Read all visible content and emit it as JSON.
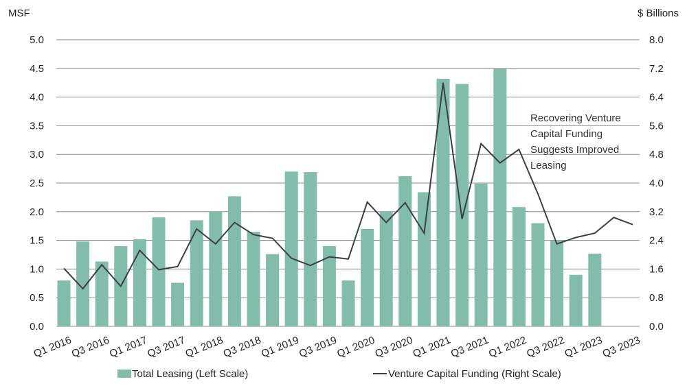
{
  "chart_data": {
    "type": "bar",
    "left_unit_label": "MSF",
    "right_unit_label": "$ Billions",
    "categories": [
      "Q1 2016",
      "Q2 2016",
      "Q3 2016",
      "Q4 2016",
      "Q1 2017",
      "Q2 2017",
      "Q3 2017",
      "Q4 2017",
      "Q1 2018",
      "Q2 2018",
      "Q3 2018",
      "Q4 2018",
      "Q1 2019",
      "Q2 2019",
      "Q3 2019",
      "Q4 2019",
      "Q1 2020",
      "Q2 2020",
      "Q3 2020",
      "Q4 2020",
      "Q1 2021",
      "Q2 2021",
      "Q3 2021",
      "Q4 2021",
      "Q1 2022",
      "Q2 2022",
      "Q3 2022",
      "Q4 2022",
      "Q1 2023",
      "Q2 2023",
      "Q3 2023"
    ],
    "x_tick_labels": [
      "Q1 2016",
      "Q3 2016",
      "Q1 2017",
      "Q3 2017",
      "Q1 2018",
      "Q3 2018",
      "Q1 2019",
      "Q3 2019",
      "Q1 2020",
      "Q3 2020",
      "Q1 2021",
      "Q3 2021",
      "Q1 2022",
      "Q3 2022",
      "Q1 2023",
      "Q3 2023"
    ],
    "left_axis": {
      "ylim": [
        0,
        5.0
      ],
      "ticks": [
        "0.0",
        "0.5",
        "1.0",
        "1.5",
        "2.0",
        "2.5",
        "3.0",
        "3.5",
        "4.0",
        "4.5",
        "5.0"
      ]
    },
    "right_axis": {
      "ylim": [
        0,
        8.0
      ],
      "ticks": [
        "0.0",
        "0.8",
        "1.6",
        "2.4",
        "3.2",
        "4.0",
        "4.8",
        "5.6",
        "6.4",
        "7.2",
        "8.0"
      ]
    },
    "grid": true,
    "series": [
      {
        "name": "Total Leasing (Left Scale)",
        "type": "bar",
        "axis": "left",
        "color": "#82bcab",
        "values": [
          0.8,
          1.48,
          1.13,
          1.4,
          1.52,
          1.9,
          0.76,
          1.85,
          2.0,
          2.27,
          1.65,
          1.26,
          2.7,
          2.69,
          1.4,
          0.8,
          1.7,
          2.0,
          2.62,
          2.34,
          4.32,
          4.23,
          2.49,
          4.49,
          2.08,
          1.8,
          1.5,
          0.9,
          1.27,
          null,
          null
        ]
      },
      {
        "name": "Venture Capital Funding (Right Scale)",
        "type": "line",
        "axis": "right",
        "color": "#3a3f43",
        "values": [
          1.62,
          1.05,
          1.72,
          1.12,
          2.12,
          1.58,
          1.67,
          2.72,
          2.3,
          2.9,
          2.56,
          2.46,
          1.9,
          1.7,
          1.94,
          1.88,
          3.47,
          2.9,
          3.45,
          2.6,
          6.8,
          3.0,
          5.1,
          4.56,
          4.94,
          3.7,
          2.3,
          2.48,
          2.6,
          3.04,
          2.84
        ]
      }
    ],
    "annotation": {
      "lines": [
        "Recovering Venture",
        "Capital Funding",
        "Suggests Improved",
        "Leasing"
      ]
    },
    "legend_position": "bottom"
  }
}
